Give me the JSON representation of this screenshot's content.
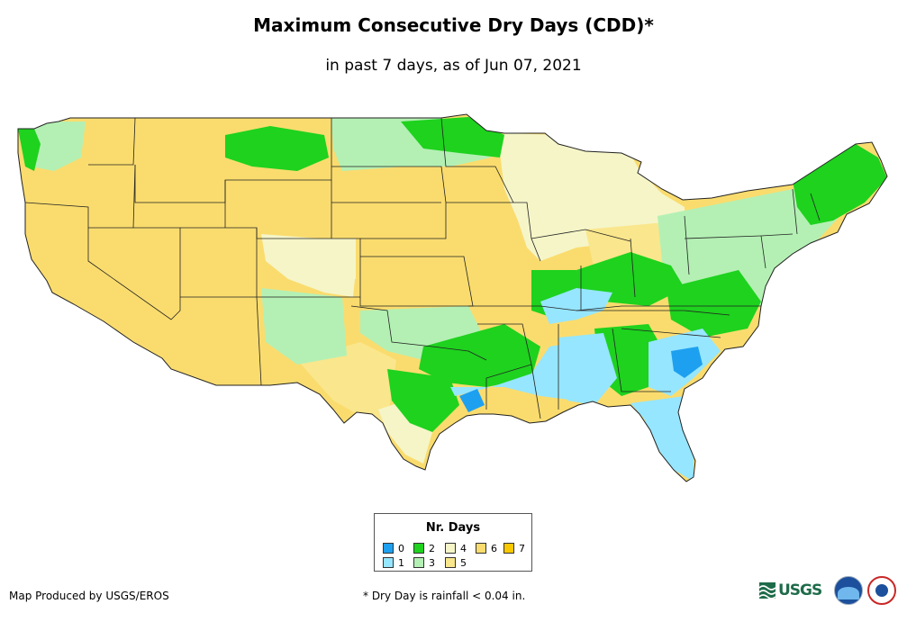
{
  "title": "Maximum Consecutive Dry Days (CDD)*",
  "subtitle": "in past 7 days, as of Jun 07, 2021",
  "legend": {
    "title": "Nr. Days",
    "items": [
      {
        "label": "0",
        "color": "#1ea0f0"
      },
      {
        "label": "1",
        "color": "#96e6ff"
      },
      {
        "label": "2",
        "color": "#1ed21e"
      },
      {
        "label": "3",
        "color": "#b4f0b4"
      },
      {
        "label": "4",
        "color": "#f5f5c8"
      },
      {
        "label": "5",
        "color": "#fae68c"
      },
      {
        "label": "6",
        "color": "#fadc6e"
      },
      {
        "label": "7",
        "color": "#fac800"
      }
    ]
  },
  "credit": "Map Produced by USGS/EROS",
  "footnote": "* Dry Day is rainfall < 0.04 in.",
  "logos": {
    "usgs": "USGS",
    "noaa": "noaa"
  },
  "map_regions": [
    {
      "name": "west",
      "days": 6
    },
    {
      "name": "northern-plains",
      "days": 6
    },
    {
      "name": "montana-north",
      "days": 2
    },
    {
      "name": "great-lakes",
      "days": 4
    },
    {
      "name": "ohio-valley",
      "days": 2
    },
    {
      "name": "tennessee-valley",
      "days": 1
    },
    {
      "name": "gulf-coast",
      "days": 1
    },
    {
      "name": "southeast",
      "days": 1
    },
    {
      "name": "texas",
      "days": 2
    },
    {
      "name": "florida",
      "days": 1
    },
    {
      "name": "new-england",
      "days": 2
    },
    {
      "name": "mid-atlantic",
      "days": 3
    }
  ]
}
